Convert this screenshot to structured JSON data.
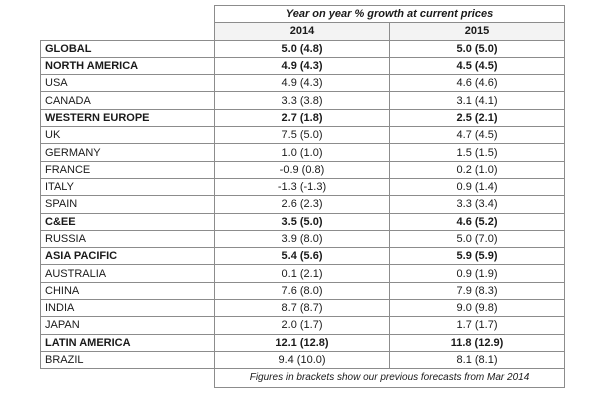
{
  "table": {
    "caption": "Year on year % growth at current prices",
    "years": [
      "2014",
      "2015"
    ],
    "rows": [
      {
        "region": "GLOBAL",
        "y2014": "5.0 (4.8)",
        "y2015": "5.0 (5.0)",
        "bold": true
      },
      {
        "region": "NORTH AMERICA",
        "y2014": "4.9 (4.3)",
        "y2015": "4.5 (4.5)",
        "bold": true
      },
      {
        "region": "USA",
        "y2014": "4.9 (4.3)",
        "y2015": "4.6 (4.6)",
        "bold": false
      },
      {
        "region": "CANADA",
        "y2014": "3.3 (3.8)",
        "y2015": "3.1 (4.1)",
        "bold": false
      },
      {
        "region": "WESTERN EUROPE",
        "y2014": "2.7 (1.8)",
        "y2015": "2.5 (2.1)",
        "bold": true
      },
      {
        "region": "UK",
        "y2014": "7.5 (5.0)",
        "y2015": "4.7 (4.5)",
        "bold": false
      },
      {
        "region": "GERMANY",
        "y2014": "1.0 (1.0)",
        "y2015": "1.5 (1.5)",
        "bold": false
      },
      {
        "region": "FRANCE",
        "y2014": "-0.9 (0.8)",
        "y2015": "0.2 (1.0)",
        "bold": false
      },
      {
        "region": "ITALY",
        "y2014": "-1.3 (-1.3)",
        "y2015": "0.9 (1.4)",
        "bold": false
      },
      {
        "region": "SPAIN",
        "y2014": "2.6 (2.3)",
        "y2015": "3.3 (3.4)",
        "bold": false
      },
      {
        "region": "C&EE",
        "y2014": "3.5 (5.0)",
        "y2015": "4.6 (5.2)",
        "bold": true
      },
      {
        "region": "RUSSIA",
        "y2014": "3.9 (8.0)",
        "y2015": "5.0 (7.0)",
        "bold": false
      },
      {
        "region": "ASIA PACIFIC",
        "y2014": "5.4 (5.6)",
        "y2015": "5.9 (5.9)",
        "bold": true
      },
      {
        "region": "AUSTRALIA",
        "y2014": "0.1 (2.1)",
        "y2015": "0.9 (1.9)",
        "bold": false
      },
      {
        "region": "CHINA",
        "y2014": "7.6 (8.0)",
        "y2015": "7.9 (8.3)",
        "bold": false
      },
      {
        "region": "INDIA",
        "y2014": "8.7 (8.7)",
        "y2015": "9.0 (9.8)",
        "bold": false
      },
      {
        "region": "JAPAN",
        "y2014": "2.0 (1.7)",
        "y2015": "1.7 (1.7)",
        "bold": false
      },
      {
        "region": "LATIN AMERICA",
        "y2014": "12.1 (12.8)",
        "y2015": "11.8 (12.9)",
        "bold": true
      },
      {
        "region": "BRAZIL",
        "y2014": "9.4 (10.0)",
        "y2015": "8.1 (8.1)",
        "bold": false
      }
    ],
    "footnote": "Figures in brackets show our previous forecasts from Mar 2014"
  }
}
